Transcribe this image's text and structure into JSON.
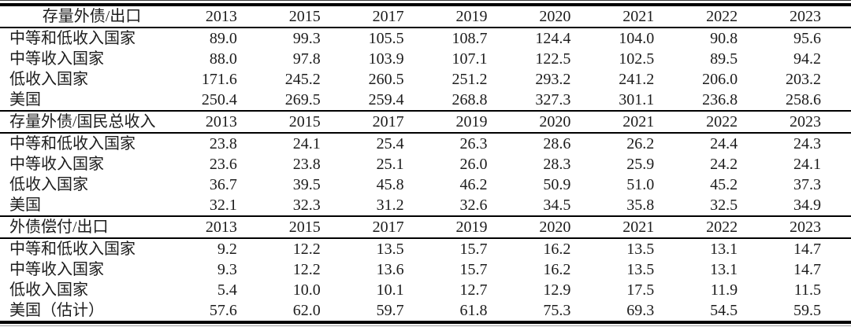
{
  "table": {
    "sections": [
      {
        "header": "存量外债/出口",
        "years": [
          "2013",
          "2015",
          "2017",
          "2019",
          "2020",
          "2021",
          "2022",
          "2023"
        ],
        "rows": [
          {
            "label": "中等和低收入国家",
            "values": [
              "89.0",
              "99.3",
              "105.5",
              "108.7",
              "124.4",
              "104.0",
              "90.8",
              "95.6"
            ]
          },
          {
            "label": "中等收入国家",
            "values": [
              "88.0",
              "97.8",
              "103.9",
              "107.1",
              "122.5",
              "102.5",
              "89.5",
              "94.2"
            ]
          },
          {
            "label": "低收入国家",
            "values": [
              "171.6",
              "245.2",
              "260.5",
              "251.2",
              "293.2",
              "241.2",
              "206.0",
              "203.2"
            ]
          },
          {
            "label": "美国",
            "values": [
              "250.4",
              "269.5",
              "259.4",
              "268.8",
              "327.3",
              "301.1",
              "236.8",
              "258.6"
            ]
          }
        ]
      },
      {
        "header": "存量外债/国民总收入",
        "years": [
          "2013",
          "2015",
          "2017",
          "2019",
          "2020",
          "2021",
          "2022",
          "2023"
        ],
        "rows": [
          {
            "label": "中等和低收入国家",
            "values": [
              "23.8",
              "24.1",
              "25.4",
              "26.3",
              "28.6",
              "26.2",
              "24.4",
              "24.3"
            ]
          },
          {
            "label": "中等收入国家",
            "values": [
              "23.6",
              "23.8",
              "25.1",
              "26.0",
              "28.3",
              "25.9",
              "24.2",
              "24.1"
            ]
          },
          {
            "label": "低收入国家",
            "values": [
              "36.7",
              "39.5",
              "45.8",
              "46.2",
              "50.9",
              "51.0",
              "45.2",
              "37.3"
            ]
          },
          {
            "label": "美国",
            "values": [
              "32.1",
              "32.3",
              "31.2",
              "32.6",
              "34.5",
              "35.8",
              "32.5",
              "34.9"
            ]
          }
        ]
      },
      {
        "header": "外债偿付/出口",
        "years": [
          "2013",
          "2015",
          "2017",
          "2019",
          "2020",
          "2021",
          "2022",
          "2023"
        ],
        "rows": [
          {
            "label": "中等和低收入国家",
            "values": [
              "9.2",
              "12.2",
              "13.5",
              "15.7",
              "16.2",
              "13.5",
              "13.1",
              "14.7"
            ]
          },
          {
            "label": "中等收入国家",
            "values": [
              "9.3",
              "12.2",
              "13.6",
              "15.7",
              "16.2",
              "13.5",
              "13.1",
              "14.7"
            ]
          },
          {
            "label": "低收入国家",
            "values": [
              "5.4",
              "10.0",
              "10.1",
              "12.7",
              "12.9",
              "17.5",
              "11.9",
              "11.5"
            ]
          },
          {
            "label": "美国（估计）",
            "values": [
              "57.6",
              "62.0",
              "59.7",
              "61.8",
              "75.3",
              "69.3",
              "54.5",
              "59.5"
            ]
          }
        ]
      }
    ]
  }
}
